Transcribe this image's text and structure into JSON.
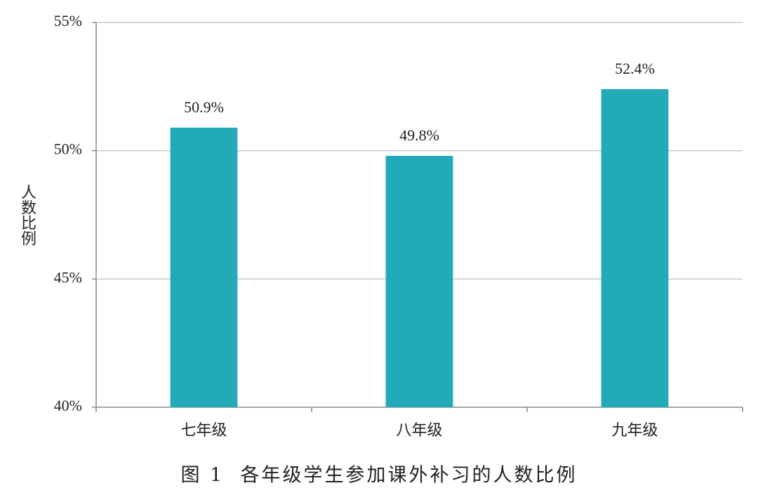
{
  "chart_data": {
    "type": "bar",
    "title": "图 1  各年级学生参加课外补习的人数比例",
    "y_label": "人数比例",
    "categories": [
      "七年级",
      "八年级",
      "九年级"
    ],
    "values": [
      50.9,
      49.8,
      52.4
    ],
    "value_labels": [
      "50.9%",
      "49.8%",
      "52.4%"
    ],
    "color": "#23aab8",
    "ylim": [
      40,
      55
    ],
    "yticks": [
      {
        "value": 40,
        "label": "40%"
      },
      {
        "value": 45,
        "label": "45%"
      },
      {
        "value": 50,
        "label": "50%"
      },
      {
        "value": 55,
        "label": "55%"
      }
    ],
    "grid": true
  }
}
